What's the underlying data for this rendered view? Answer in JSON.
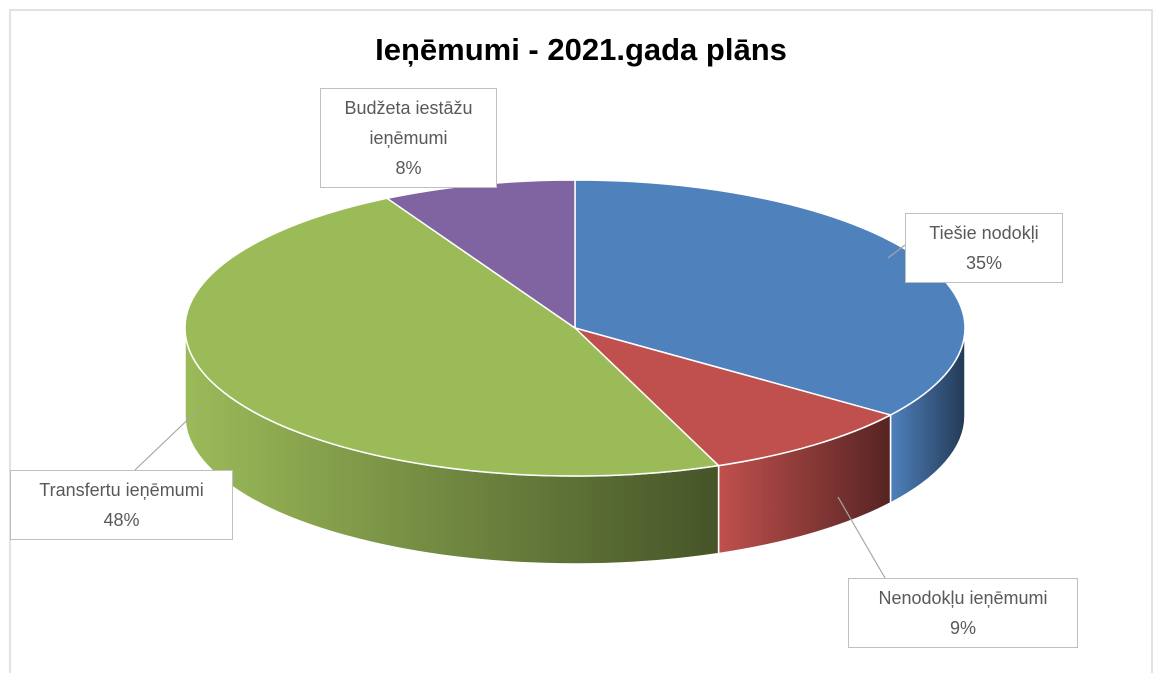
{
  "chart_data": {
    "type": "pie",
    "title": "Ieņēmumi - 2021.gada plāns",
    "categories": [
      "Tiešie nodokļi",
      "Nenodokļu ieņēmumi",
      "Transfertu ieņēmumi",
      "Budžeta iestāžu ieņēmumi"
    ],
    "values": [
      35,
      9,
      48,
      8
    ],
    "value_labels": [
      "35%",
      "9%",
      "48%",
      "8%"
    ],
    "colors": [
      "#4f81bd",
      "#c0504d",
      "#9bbb59",
      "#8064a2"
    ]
  }
}
